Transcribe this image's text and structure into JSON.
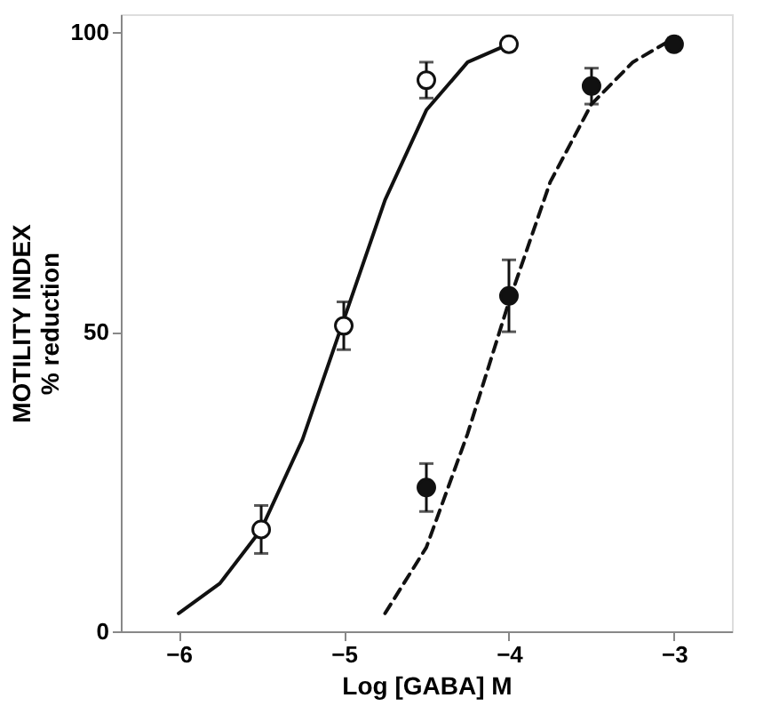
{
  "chart_data": {
    "type": "scatter",
    "xlabel": "Log [GABA] M",
    "ylabel": "MOTILITY INDEX\n% reduction",
    "xlim": [
      -6.35,
      -2.65
    ],
    "ylim": [
      0,
      103
    ],
    "xticks": [
      -6,
      -5,
      -4,
      -3
    ],
    "yticks": [
      0,
      50,
      100
    ],
    "grid": false,
    "marker": "circle",
    "series": [
      {
        "type": "line",
        "line_style": "solid",
        "marker": "none",
        "color": "#111111",
        "x": [
          -6,
          -5.75,
          -5.5,
          -5.25,
          -5,
          -4.75,
          -4.5,
          -4.25,
          -4
        ],
        "values": [
          3,
          8,
          17,
          32,
          52,
          72,
          87,
          95,
          98
        ]
      },
      {
        "type": "line",
        "line_style": "dashed",
        "marker": "none",
        "color": "#111111",
        "x": [
          -4.75,
          -4.5,
          -4.25,
          -4,
          -3.75,
          -3.5,
          -3.25,
          -3
        ],
        "values": [
          3,
          14,
          33,
          55,
          75,
          88,
          95,
          99
        ]
      },
      {
        "color": "#ffffff",
        "x": [
          -5.5,
          -5,
          -4.5,
          -4
        ],
        "values": [
          17,
          51,
          92,
          98
        ],
        "errors": [
          4,
          4,
          3,
          1
        ]
      },
      {
        "color": "#111111",
        "x": [
          -4.5,
          -4,
          -3.5,
          -3
        ],
        "values": [
          24,
          56,
          91,
          98
        ],
        "errors": [
          4,
          6,
          3,
          1
        ]
      }
    ]
  }
}
